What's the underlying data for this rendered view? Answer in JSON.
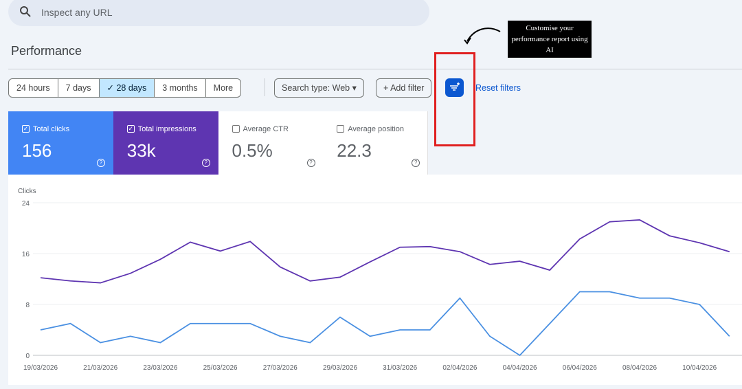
{
  "search": {
    "placeholder": "Inspect any URL"
  },
  "header": {
    "title": "Performance"
  },
  "date_range": {
    "options": [
      "24 hours",
      "7 days",
      "28 days",
      "3 months",
      "More"
    ],
    "selected": 2
  },
  "filters": {
    "search_type": "Search type: Web",
    "add_filter": "Add filter",
    "reset": "Reset filters"
  },
  "annotation": {
    "text": "Customise your performance report using AI"
  },
  "cards": [
    {
      "label": "Total clicks",
      "value": "156",
      "active": true,
      "color": "#4285f4"
    },
    {
      "label": "Total impressions",
      "value": "33k",
      "active": true,
      "color": "#5e35b1"
    },
    {
      "label": "Average CTR",
      "value": "0.5%",
      "active": false,
      "color": "#ffffff"
    },
    {
      "label": "Average position",
      "value": "22.3",
      "active": false,
      "color": "#ffffff"
    }
  ],
  "chart_data": {
    "type": "line",
    "y_label": "Clicks",
    "categories": [
      "19/03/2026",
      null,
      "21/03/2026",
      null,
      "23/03/2026",
      null,
      "25/03/2026",
      null,
      "27/03/2026",
      null,
      "29/03/2026",
      null,
      "31/03/2026",
      null,
      "02/04/2026",
      null,
      "04/04/2026",
      null,
      "06/04/2026",
      null,
      "08/04/2026",
      null,
      "10/04/2026",
      null
    ],
    "series": [
      {
        "name": "Total impressions",
        "color": "#5e35b1",
        "values": [
          12.2,
          11.7,
          11.4,
          12.9,
          15.1,
          17.8,
          16.4,
          17.9,
          13.9,
          11.7,
          12.3,
          14.7,
          17.0,
          17.1,
          16.3,
          14.3,
          14.8,
          13.4,
          18.3,
          21.0,
          21.3,
          18.8,
          17.7,
          16.3
        ]
      },
      {
        "name": "Total clicks",
        "color": "#4a90e2",
        "values": [
          4,
          5,
          2,
          3,
          2,
          5,
          5,
          5,
          3,
          2,
          6,
          3,
          4,
          4,
          9,
          3,
          0,
          5,
          10,
          10,
          9,
          9,
          8,
          3
        ]
      }
    ],
    "ylim": [
      0,
      24
    ],
    "yticks": [
      0,
      8,
      16,
      24
    ],
    "grid": true
  }
}
